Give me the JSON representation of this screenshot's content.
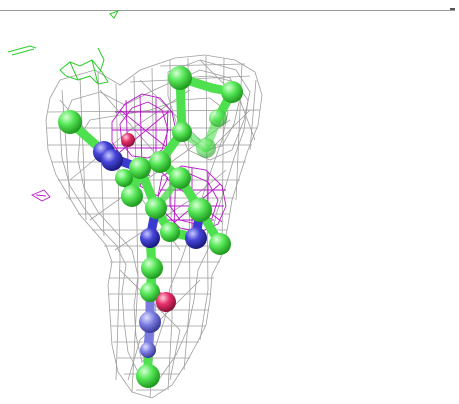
{
  "viewer": {
    "background": "#ffffff",
    "colors": {
      "mesh_gray": "#8e8e8e",
      "mesh_magenta": "#b000c0",
      "mesh_green": "#2ccc2c",
      "atom_carbon": "#4ee04e",
      "atom_nitrogen": "#3a3ad0",
      "atom_oxygen": "#e0306a"
    },
    "icons": [
      "molecule-stick-model",
      "density-mesh"
    ]
  }
}
